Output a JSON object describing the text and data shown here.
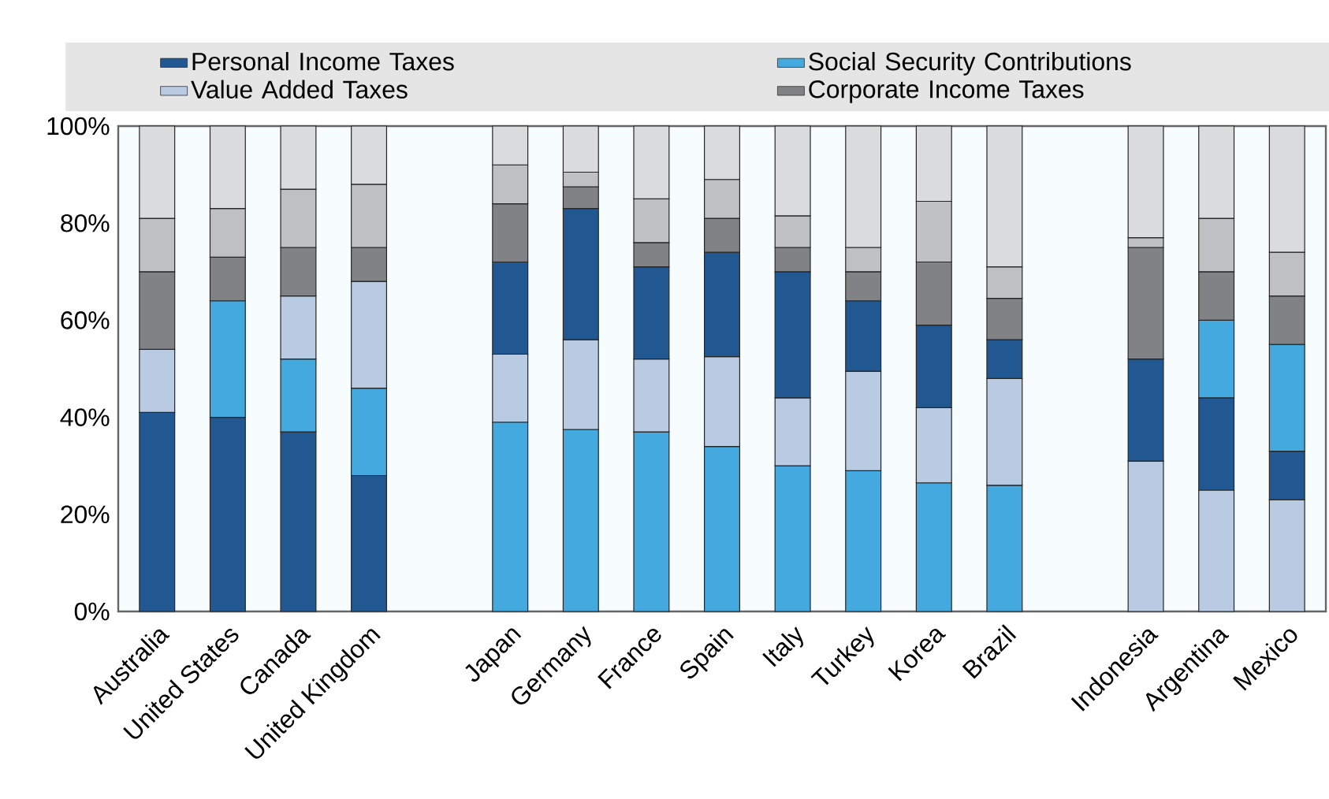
{
  "chart_data": {
    "type": "bar",
    "stacked": true,
    "legend": "top",
    "categories": [
      "Australia",
      "United States",
      "Canada",
      "United Kingdom",
      null,
      "Japan",
      "Germany",
      "France",
      "Spain",
      "Italy",
      "Turkey",
      "Korea",
      "Brazil",
      null,
      "Indonesia",
      "Argentina",
      "Mexico"
    ],
    "series": [
      {
        "name": "Personal Income Taxes",
        "color": "#215891",
        "values": [
          41,
          40,
          37,
          28,
          null,
          null,
          null,
          null,
          null,
          null,
          null,
          null,
          null,
          null,
          null,
          null,
          null
        ]
      },
      {
        "name": "Social Security Contributions",
        "color": "#43a9df",
        "values": [
          null,
          24,
          15,
          18,
          null,
          39,
          37.5,
          37,
          34,
          30,
          29,
          26.5,
          26,
          null,
          null,
          null,
          null
        ]
      },
      {
        "name": "Value Added Taxes",
        "color": "#b8cbe3",
        "values": [
          13,
          null,
          13,
          22,
          null,
          14,
          18.5,
          15,
          18.5,
          14,
          20.5,
          15.5,
          22,
          null,
          31,
          25,
          23
        ]
      },
      {
        "color": "#215891",
        "values": [
          null,
          null,
          null,
          null,
          null,
          19,
          27,
          19,
          21.5,
          26,
          14.5,
          17,
          8,
          null,
          21,
          19,
          10
        ]
      },
      {
        "color": "#43a9df",
        "values": [
          null,
          null,
          null,
          null,
          null,
          null,
          null,
          null,
          null,
          null,
          null,
          null,
          null,
          null,
          null,
          16,
          22
        ]
      },
      {
        "name": "Corporate Income Taxes",
        "color": "#808285",
        "values": [
          16,
          9,
          10,
          7,
          null,
          12,
          4.5,
          5,
          7,
          5,
          6,
          13,
          8.5,
          null,
          23,
          10,
          10
        ]
      },
      {
        "color": "#bfc0c3",
        "values": [
          11,
          10,
          12,
          13,
          null,
          8,
          3,
          9,
          8,
          6.5,
          5,
          12.5,
          6.5,
          null,
          2,
          11,
          9
        ]
      },
      {
        "color": "#dadbdd",
        "values": [
          19,
          17,
          13,
          12,
          null,
          8,
          9.5,
          15,
          11,
          18.5,
          25,
          15.5,
          29,
          null,
          23,
          19,
          26
        ]
      }
    ],
    "ylim": [
      0,
      100
    ],
    "yticks": [
      {
        "value": 0,
        "label": "0%"
      },
      {
        "value": 20,
        "label": "20%"
      },
      {
        "value": 40,
        "label": "40%"
      },
      {
        "value": 60,
        "label": "60%"
      },
      {
        "value": 80,
        "label": "80%"
      },
      {
        "value": 100,
        "label": "100%"
      }
    ]
  }
}
